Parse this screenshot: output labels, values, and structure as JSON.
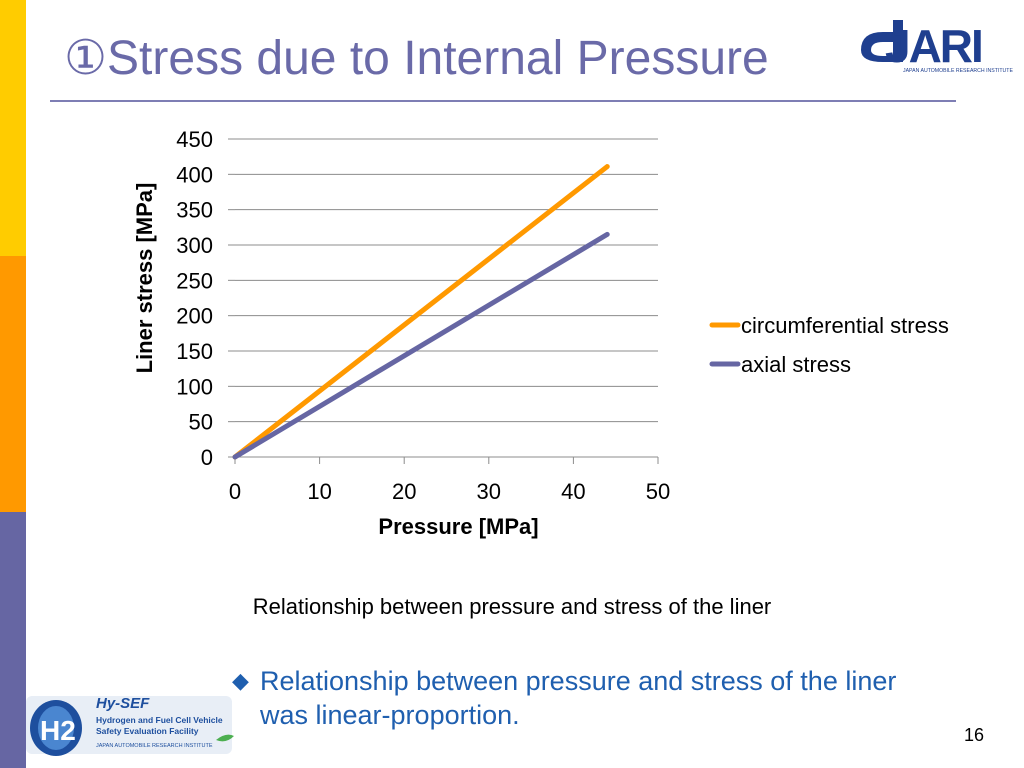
{
  "slide": {
    "title": "①Stress due to Internal Pressure",
    "caption": "Relationship between pressure and stress of the liner",
    "bullet": "Relationship between pressure and stress of the liner was linear-proportion.",
    "bullet_marker": "◆",
    "page_number": "16"
  },
  "logos": {
    "jari_text": "JARI",
    "jari_subtitle": "JAPAN AUTOMOBILE RESEARCH INSTITUTE",
    "hysef_mark": "H2",
    "hysef_name": "Hy-SEF",
    "hysef_line1": "Hydrogen and Fuel Cell Vehicle",
    "hysef_line2": "Safety Evaluation Facility",
    "hysef_line3": "JAPAN AUTOMOBILE RESEARCH INSTITUTE"
  },
  "colors": {
    "title": "#6A6AA8",
    "circumferential": "#FF9900",
    "axial": "#6666A3",
    "bullet": "#1F5FAF",
    "gridline": "#8C8C8C"
  },
  "chart_data": {
    "type": "line",
    "title": "",
    "xlabel": "Pressure [MPa]",
    "ylabel": "Liner stress [MPa]",
    "xlim": [
      0,
      50
    ],
    "ylim": [
      0,
      450
    ],
    "xticks": [
      "0",
      "10",
      "20",
      "30",
      "40",
      "50"
    ],
    "yticks": [
      "0",
      "50",
      "100",
      "150",
      "200",
      "250",
      "300",
      "350",
      "400",
      "450"
    ],
    "grid": true,
    "legend_position": "right",
    "series": [
      {
        "name": "circumferential stress",
        "color": "#FF9900",
        "x": [
          0,
          44
        ],
        "y": [
          0,
          411
        ]
      },
      {
        "name": "axial stress",
        "color": "#6666A3",
        "x": [
          0,
          44
        ],
        "y": [
          0,
          315
        ]
      }
    ]
  }
}
